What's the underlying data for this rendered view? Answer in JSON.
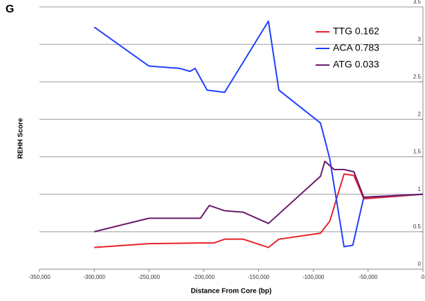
{
  "chart_data": {
    "type": "line",
    "panel_label": "G",
    "xlabel": "Distance From Core (bp)",
    "ylabel": "REHH Score",
    "xlim": [
      -350000,
      0
    ],
    "ylim": [
      0,
      3.5
    ],
    "xticks": [
      {
        "value": -350000,
        "label": "-350,000"
      },
      {
        "value": -300000,
        "label": "-300,000"
      },
      {
        "value": -250000,
        "label": "-250,000"
      },
      {
        "value": -200000,
        "label": "-200,000"
      },
      {
        "value": -150000,
        "label": "-150,000"
      },
      {
        "value": -100000,
        "label": "-100,000"
      },
      {
        "value": -50000,
        "label": "-50,000"
      },
      0
    ],
    "yticks": [
      0,
      0.5,
      1,
      1.5,
      2,
      2.5,
      3,
      3.5
    ],
    "grid": true,
    "legend": "upper right",
    "series": [
      {
        "name": "TTG 0.162",
        "color": "#e8202a",
        "x": [
          -300000,
          -250000,
          -203000,
          -190500,
          -181000,
          -164000,
          -141000,
          -131500,
          -93500,
          -85000,
          -72000,
          -63000,
          -54000,
          0
        ],
        "values": [
          0.29,
          0.34,
          0.35,
          0.35,
          0.4,
          0.4,
          0.29,
          0.4,
          0.48,
          0.64,
          1.27,
          1.25,
          0.94,
          1.0
        ]
      },
      {
        "name": "ACA 0.783",
        "color": "#1f3fff",
        "x": [
          -300000,
          -250000,
          -222000,
          -212500,
          -208000,
          -197000,
          -181000,
          -141000,
          -131500,
          -93500,
          -89000,
          -85000,
          -72000,
          -64000,
          -54000,
          0
        ],
        "values": [
          3.23,
          2.71,
          2.68,
          2.64,
          2.68,
          2.39,
          2.36,
          3.31,
          2.39,
          1.95,
          1.7,
          1.47,
          0.3,
          0.32,
          0.96,
          1.0
        ]
      },
      {
        "name": "ATG 0.033",
        "color": "#6a1a6a",
        "x": [
          -300000,
          -250000,
          -203000,
          -195000,
          -181000,
          -164000,
          -141000,
          -93500,
          -89500,
          -81000,
          -72000,
          -63000,
          -54000,
          0
        ],
        "values": [
          0.5,
          0.68,
          0.68,
          0.85,
          0.78,
          0.76,
          0.61,
          1.24,
          1.44,
          1.33,
          1.33,
          1.3,
          0.96,
          1.0
        ]
      }
    ]
  }
}
